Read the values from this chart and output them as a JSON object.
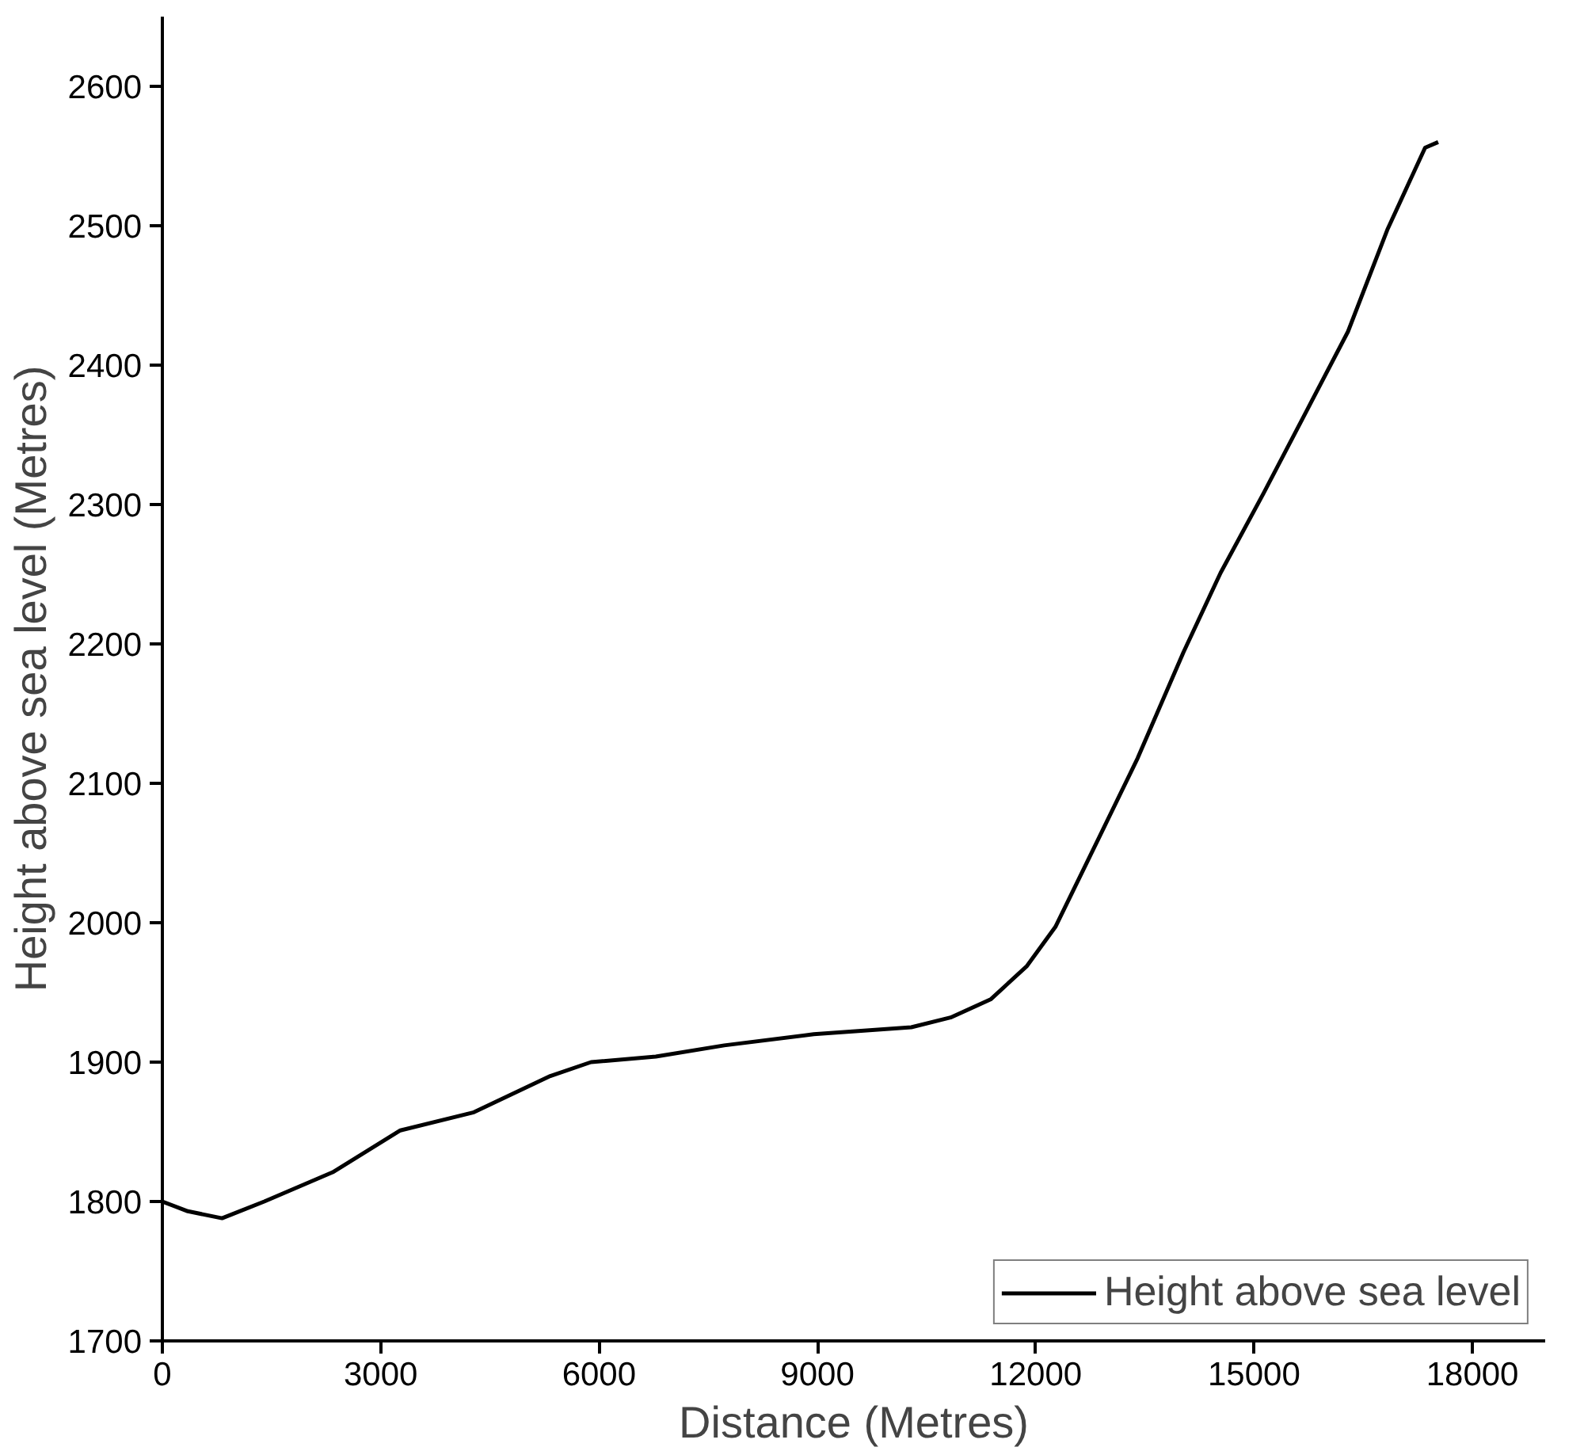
{
  "chart_data": {
    "type": "line",
    "xlabel": "Distance (Metres)",
    "ylabel": "Height above sea level (Metres)",
    "x": [
      0,
      350,
      820,
      1400,
      2340,
      3270,
      4280,
      5330,
      5890,
      6780,
      7720,
      8950,
      10290,
      10830,
      11380,
      11880,
      12270,
      12860,
      13400,
      14030,
      14540,
      15130,
      15740,
      16290,
      16830,
      17350,
      17530
    ],
    "series": [
      {
        "name": "Height above sea level",
        "color": "#000000",
        "values": [
          1800,
          1793,
          1788,
          1800,
          1821,
          1851,
          1864,
          1890,
          1900,
          1904,
          1912,
          1920,
          1925,
          1932,
          1945,
          1969,
          1997,
          2060,
          2118,
          2194,
          2251,
          2308,
          2369,
          2424,
          2497,
          2556,
          2560
        ]
      }
    ],
    "xlim": [
      0,
      19000
    ],
    "ylim": [
      1700,
      2650
    ],
    "xticks": [
      0,
      3000,
      6000,
      9000,
      12000,
      15000,
      18000
    ],
    "yticks": [
      1700,
      1800,
      1900,
      2000,
      2100,
      2200,
      2300,
      2400,
      2500,
      2600
    ],
    "grid": false,
    "legend": "bottom right",
    "line_style": "solid",
    "marker": "none"
  }
}
